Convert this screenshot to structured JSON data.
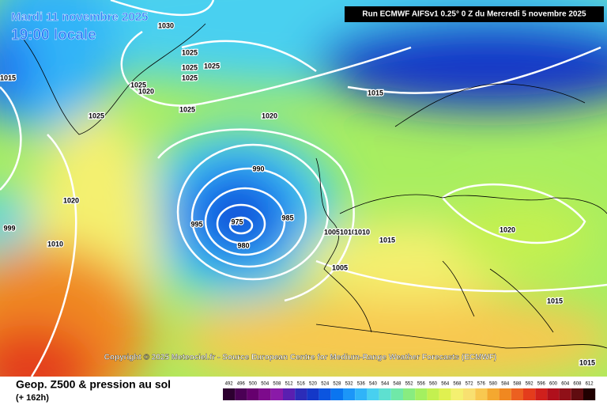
{
  "header": {
    "date": "Mardi 11 novembre 2025",
    "time": "19:00 locale",
    "run": "Run ECMWF AIFSv1 0.25° 0 Z du Mercredi 5 novembre 2025"
  },
  "copyright": "Copyright © 2025 Meteociel.fr - Source European Centre for Medium-Range Weather Forecasts (ECMWF)",
  "footer": {
    "title": "Geop. Z500 & pression au sol",
    "subtitle": "(+ 162h)"
  },
  "legend": {
    "values": [
      492,
      496,
      500,
      504,
      508,
      512,
      516,
      520,
      524,
      528,
      532,
      536,
      540,
      544,
      548,
      552,
      556,
      560,
      564,
      568,
      572,
      576,
      580,
      584,
      588,
      592,
      596,
      600,
      604,
      608,
      612
    ],
    "colors": [
      "#2d0030",
      "#4b0055",
      "#66006e",
      "#7d0a8c",
      "#8a1aa8",
      "#5a1fb0",
      "#2c2cb8",
      "#1438c8",
      "#0b55e0",
      "#0a75f0",
      "#1c96f8",
      "#30b4f8",
      "#48d0f0",
      "#5ee0d0",
      "#70e8a8",
      "#88ec80",
      "#a4f060",
      "#c4f050",
      "#e0f050",
      "#f4f070",
      "#f8e070",
      "#f8c850",
      "#f4a830",
      "#f08820",
      "#ec6020",
      "#e43c1c",
      "#d0201c",
      "#b0101c",
      "#901018",
      "#600c10",
      "#200000"
    ]
  },
  "isobar_labels": [
    "1030",
    "1025",
    "1025",
    "1025",
    "1025",
    "1015",
    "1025",
    "1020",
    "1025",
    "1025",
    "1020",
    "1015",
    "990",
    "1020",
    "995",
    "975",
    "985",
    "980",
    "1005",
    "1010",
    "1010",
    "1015",
    "1005",
    "1020",
    "1015",
    "1015",
    "999",
    "1010"
  ]
}
